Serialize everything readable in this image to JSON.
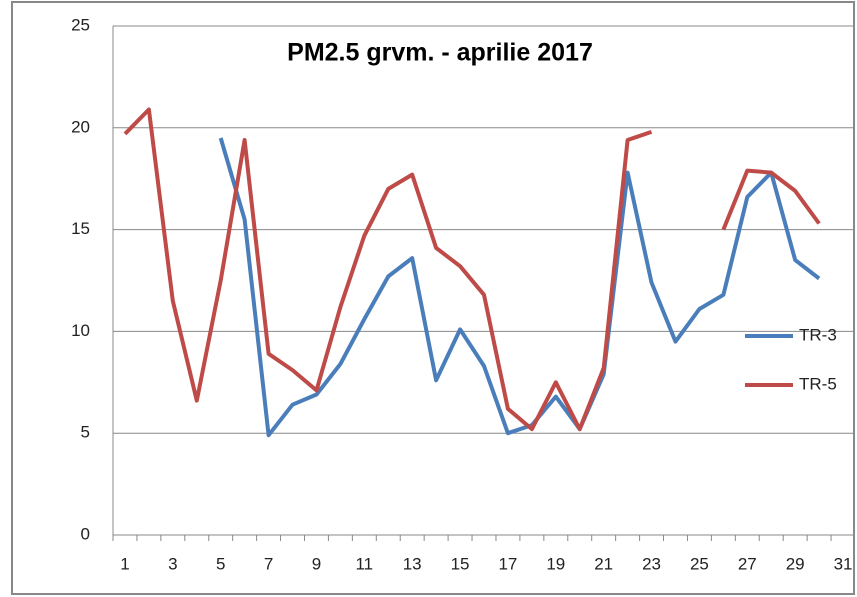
{
  "chart_data": {
    "type": "line",
    "title": "PM2.5 grvm. - aprilie 2017",
    "categories": [
      "1",
      null,
      "3",
      null,
      "5",
      null,
      "7",
      null,
      "9",
      null,
      "11",
      null,
      "13",
      null,
      "15",
      null,
      "17",
      null,
      "19",
      null,
      "21",
      null,
      "23",
      null,
      "25",
      null,
      "27",
      null,
      "29",
      null,
      "31"
    ],
    "series": [
      {
        "name": "TR-3",
        "color": "#4a7ebb",
        "values": [
          null,
          null,
          null,
          null,
          19.5,
          15.5,
          4.9,
          6.4,
          6.9,
          8.4,
          10.6,
          12.7,
          13.6,
          7.6,
          10.1,
          8.3,
          5.0,
          5.4,
          6.8,
          5.2,
          7.9,
          17.8,
          12.4,
          9.5,
          11.1,
          11.8,
          16.6,
          17.8,
          13.5,
          12.6,
          null
        ]
      },
      {
        "name": "TR-5",
        "color": "#be4b48",
        "values": [
          19.7,
          20.9,
          11.5,
          6.6,
          12.5,
          19.4,
          8.9,
          8.1,
          7.1,
          11.2,
          14.7,
          17.0,
          17.7,
          14.1,
          13.2,
          11.8,
          6.2,
          5.2,
          7.5,
          5.2,
          8.2,
          19.4,
          19.8,
          null,
          null,
          15.0,
          17.9,
          17.8,
          16.9,
          15.3,
          null
        ]
      }
    ],
    "ylim": [
      0,
      25
    ],
    "yticks": [
      0,
      5,
      10,
      15,
      20,
      25
    ],
    "grid": true,
    "legend": "right"
  }
}
